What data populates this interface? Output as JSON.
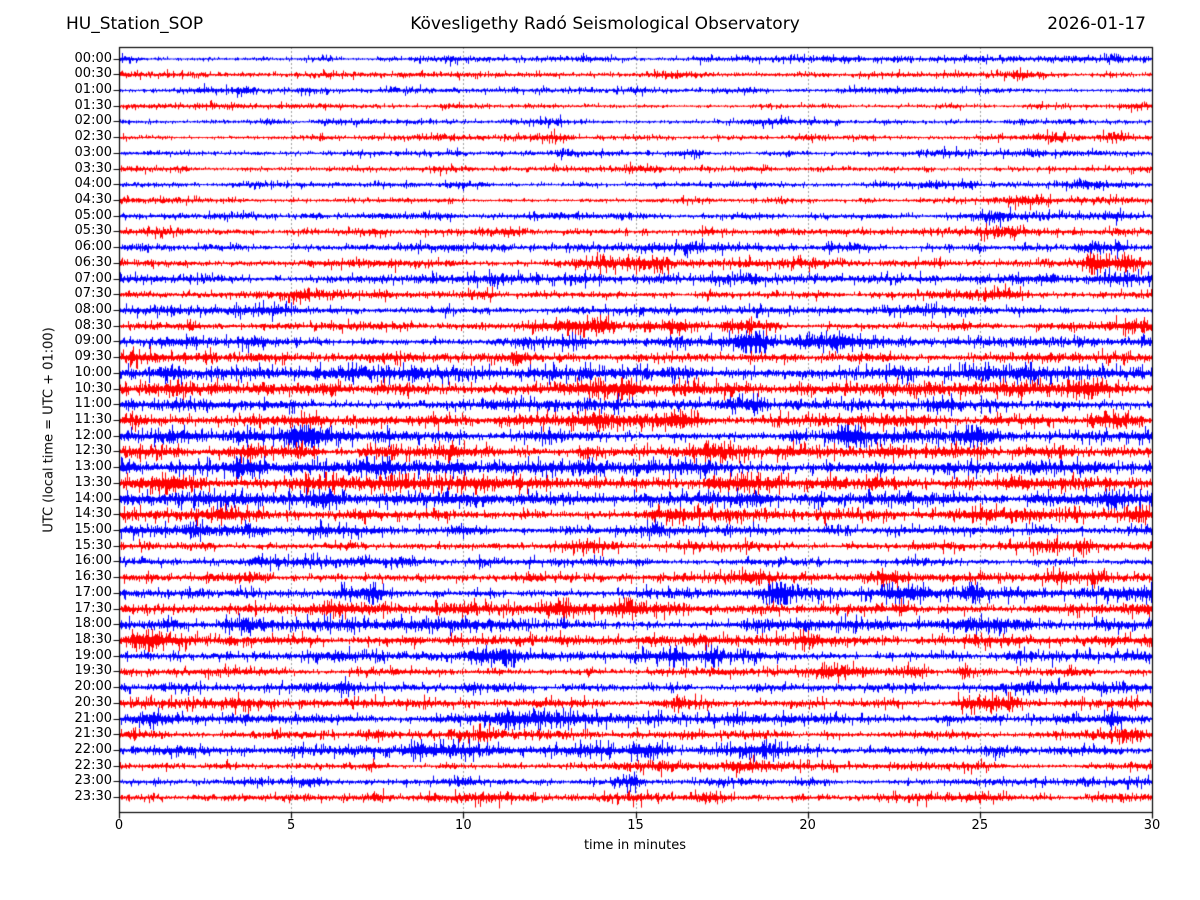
{
  "header": {
    "station": "HU_Station_SOP",
    "observatory": "Kövesligethy Radó Seismological Observatory",
    "date": "2026-01-17"
  },
  "axes": {
    "y_label": "UTC (local time = UTC + 01:00)",
    "x_label": "time in minutes",
    "x_ticks": [
      0,
      5,
      10,
      15,
      20,
      25,
      30
    ],
    "x_range": [
      0,
      30
    ],
    "grid_minutes": [
      5,
      10,
      15,
      20,
      25
    ]
  },
  "colors": {
    "trace_blue": "#0000ff",
    "trace_red": "#ff0000",
    "grid": "#444444",
    "axis": "#000000",
    "background": "#ffffff"
  },
  "chart_data": {
    "type": "line",
    "subtype": "helicorder-dayplot",
    "minutes_per_row": 30,
    "title": "HU_Station_SOP  Kövesligethy Radó Seismological Observatory  2026-01-17",
    "xlabel": "time in minutes",
    "ylabel": "UTC (local time = UTC + 01:00)",
    "rows": [
      {
        "time": "00:00",
        "color": "blue",
        "amp": 1.4,
        "events": [
          {
            "t": 28.9,
            "hw": 0.25,
            "mult": 1.7
          }
        ]
      },
      {
        "time": "00:30",
        "color": "red",
        "amp": 1.5,
        "events": []
      },
      {
        "time": "01:00",
        "color": "blue",
        "amp": 1.4,
        "events": []
      },
      {
        "time": "01:30",
        "color": "red",
        "amp": 1.4,
        "events": []
      },
      {
        "time": "02:00",
        "color": "blue",
        "amp": 1.3,
        "events": []
      },
      {
        "time": "02:30",
        "color": "red",
        "amp": 1.5,
        "events": [
          {
            "t": 27.0,
            "hw": 0.8,
            "mult": 1.45
          }
        ]
      },
      {
        "time": "03:00",
        "color": "blue",
        "amp": 1.3,
        "events": []
      },
      {
        "time": "03:30",
        "color": "red",
        "amp": 1.4,
        "events": []
      },
      {
        "time": "04:00",
        "color": "blue",
        "amp": 1.4,
        "events": []
      },
      {
        "time": "04:30",
        "color": "red",
        "amp": 1.5,
        "events": []
      },
      {
        "time": "05:00",
        "color": "blue",
        "amp": 1.7,
        "events": []
      },
      {
        "time": "05:30",
        "color": "red",
        "amp": 1.7,
        "events": []
      },
      {
        "time": "06:00",
        "color": "blue",
        "amp": 1.9,
        "events": [
          {
            "t": 28.6,
            "hw": 0.8,
            "mult": 1.35
          }
        ]
      },
      {
        "time": "06:30",
        "color": "red",
        "amp": 2.0,
        "events": [
          {
            "t": 28.25,
            "hw": 0.13,
            "mult": 3.8
          },
          {
            "t": 28.8,
            "hw": 0.55,
            "mult": 2.4
          },
          {
            "t": 29.6,
            "hw": 0.35,
            "mult": 1.7
          }
        ]
      },
      {
        "time": "07:00",
        "color": "blue",
        "amp": 2.1,
        "events": [
          {
            "t": 28.5,
            "hw": 0.5,
            "mult": 1.5
          }
        ]
      },
      {
        "time": "07:30",
        "color": "red",
        "amp": 1.9,
        "events": []
      },
      {
        "time": "08:00",
        "color": "blue",
        "amp": 1.9,
        "events": []
      },
      {
        "time": "08:30",
        "color": "red",
        "amp": 2.1,
        "events": [
          {
            "t": 13.0,
            "hw": 0.9,
            "mult": 1.9
          }
        ]
      },
      {
        "time": "09:00",
        "color": "blue",
        "amp": 2.5,
        "events": []
      },
      {
        "time": "09:30",
        "color": "red",
        "amp": 2.6,
        "events": []
      },
      {
        "time": "10:00",
        "color": "blue",
        "amp": 3.3,
        "events": []
      },
      {
        "time": "10:30",
        "color": "red",
        "amp": 3.3,
        "events": [
          {
            "t": 1.6,
            "hw": 0.5,
            "mult": 1.6
          },
          {
            "t": 4.6,
            "hw": 0.5,
            "mult": 1.5
          }
        ]
      },
      {
        "time": "11:00",
        "color": "blue",
        "amp": 3.0,
        "events": []
      },
      {
        "time": "11:30",
        "color": "red",
        "amp": 3.4,
        "events": []
      },
      {
        "time": "12:00",
        "color": "blue",
        "amp": 3.3,
        "events": [
          {
            "t": 21.3,
            "hw": 0.4,
            "mult": 1.5
          },
          {
            "t": 24.9,
            "hw": 0.4,
            "mult": 1.55
          }
        ]
      },
      {
        "time": "12:30",
        "color": "red",
        "amp": 3.4,
        "events": [
          {
            "t": 17.3,
            "hw": 0.4,
            "mult": 1.7
          }
        ]
      },
      {
        "time": "13:00",
        "color": "blue",
        "amp": 3.8,
        "events": []
      },
      {
        "time": "13:30",
        "color": "red",
        "amp": 3.9,
        "events": [
          {
            "t": 1.5,
            "hw": 0.6,
            "mult": 1.6
          }
        ]
      },
      {
        "time": "14:00",
        "color": "blue",
        "amp": 3.5,
        "events": []
      },
      {
        "time": "14:30",
        "color": "red",
        "amp": 3.0,
        "events": []
      },
      {
        "time": "15:00",
        "color": "blue",
        "amp": 3.0,
        "events": []
      },
      {
        "time": "15:30",
        "color": "red",
        "amp": 2.4,
        "events": [
          {
            "t": 24.3,
            "hw": 0.8,
            "mult": 1.8
          },
          {
            "t": 26.5,
            "hw": 1.2,
            "mult": 1.5
          },
          {
            "t": 28.0,
            "hw": 0.5,
            "mult": 1.9
          }
        ]
      },
      {
        "time": "16:00",
        "color": "blue",
        "amp": 2.2,
        "events": []
      },
      {
        "time": "16:30",
        "color": "red",
        "amp": 2.2,
        "events": []
      },
      {
        "time": "17:00",
        "color": "blue",
        "amp": 2.8,
        "events": []
      },
      {
        "time": "17:30",
        "color": "red",
        "amp": 2.8,
        "events": []
      },
      {
        "time": "18:00",
        "color": "blue",
        "amp": 3.0,
        "events": []
      },
      {
        "time": "18:30",
        "color": "red",
        "amp": 2.8,
        "events": []
      },
      {
        "time": "19:00",
        "color": "blue",
        "amp": 2.5,
        "events": [
          {
            "t": 6.3,
            "hw": 0.5,
            "mult": 1.6
          }
        ]
      },
      {
        "time": "19:30",
        "color": "red",
        "amp": 2.2,
        "events": []
      },
      {
        "time": "20:00",
        "color": "blue",
        "amp": 2.2,
        "events": []
      },
      {
        "time": "20:30",
        "color": "red",
        "amp": 2.3,
        "events": [
          {
            "t": 25.0,
            "hw": 0.6,
            "mult": 1.9
          }
        ]
      },
      {
        "time": "21:00",
        "color": "blue",
        "amp": 2.4,
        "events": [
          {
            "t": 0.5,
            "hw": 0.5,
            "mult": 1.5
          }
        ]
      },
      {
        "time": "21:30",
        "color": "red",
        "amp": 2.2,
        "events": [
          {
            "t": 24.6,
            "hw": 0.4,
            "mult": 1.7
          },
          {
            "t": 29.4,
            "hw": 0.3,
            "mult": 1.7
          }
        ]
      },
      {
        "time": "22:00",
        "color": "blue",
        "amp": 2.3,
        "events": [
          {
            "t": 13.8,
            "hw": 0.6,
            "mult": 1.6
          }
        ]
      },
      {
        "time": "22:30",
        "color": "red",
        "amp": 1.8,
        "events": []
      },
      {
        "time": "23:00",
        "color": "blue",
        "amp": 1.8,
        "events": []
      },
      {
        "time": "23:30",
        "color": "red",
        "amp": 1.9,
        "events": []
      }
    ]
  }
}
